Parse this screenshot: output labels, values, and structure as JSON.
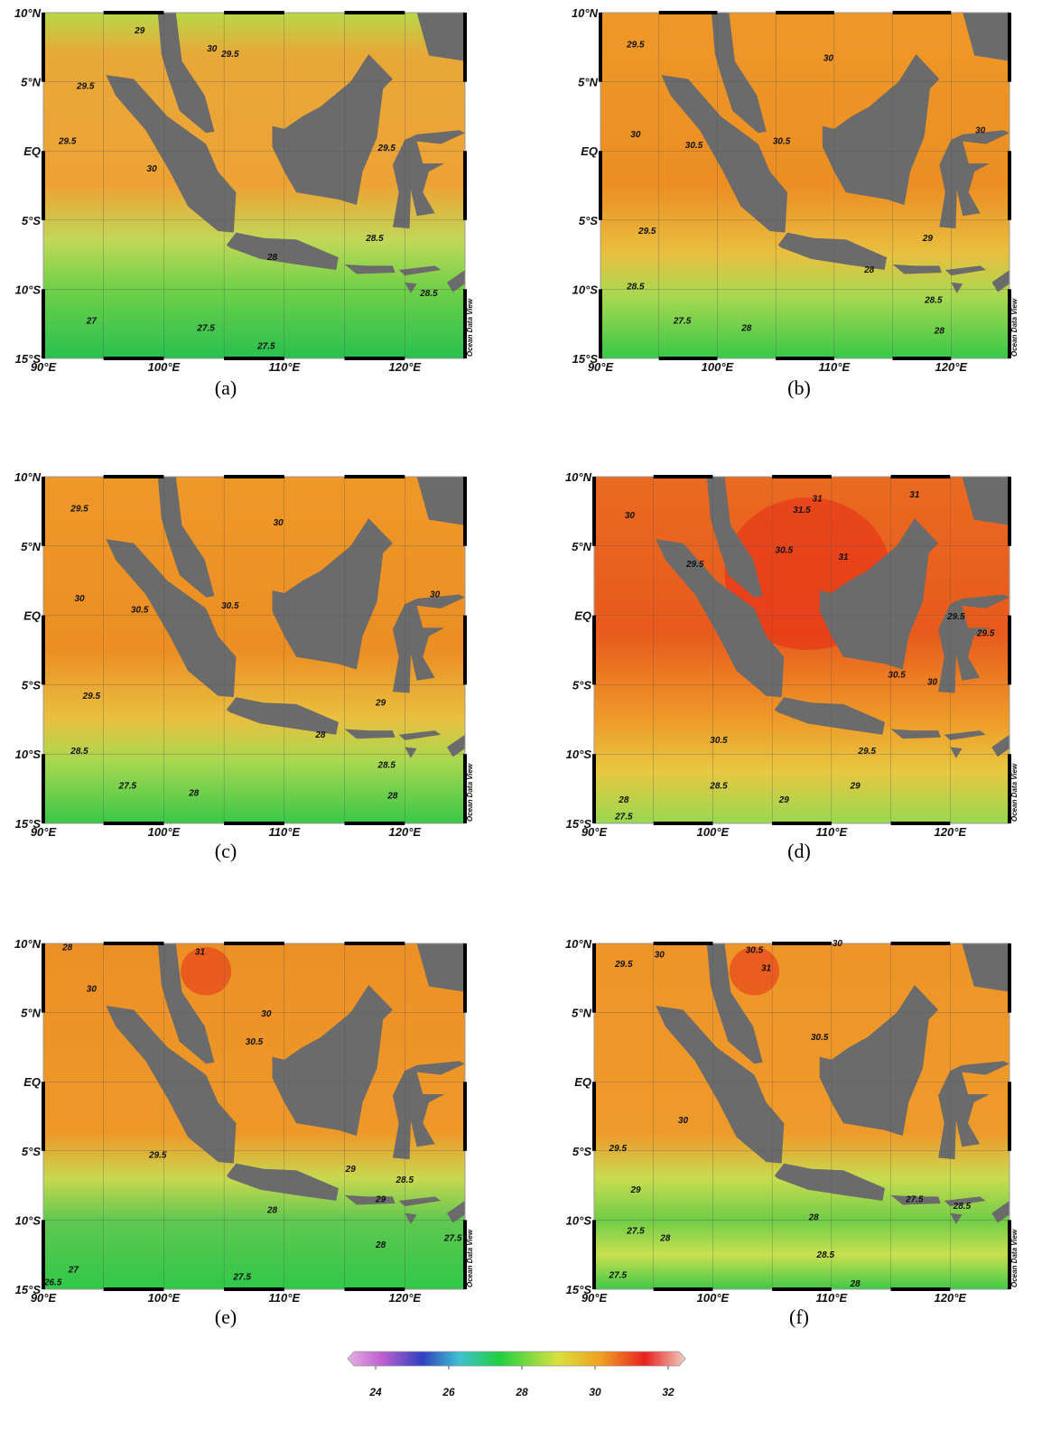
{
  "lat_labels": [
    "10°N",
    "5°N",
    "EQ",
    "5°S",
    "10°S",
    "15°S"
  ],
  "lon_labels": [
    "90°E",
    "100°E",
    "110°E",
    "120°E"
  ],
  "watermark": "Ocean Data View",
  "panels": [
    {
      "caption": "(a)",
      "contour_labels": [
        "29",
        "30",
        "29.5",
        "29.5",
        "29.5",
        "30",
        "29.5",
        "28.5",
        "28",
        "28.5",
        "27",
        "27.5",
        "27.5"
      ]
    },
    {
      "caption": "(b)",
      "contour_labels": [
        "29.5",
        "30",
        "30.5",
        "30",
        "30.5",
        "30",
        "29.5",
        "28.5",
        "27.5",
        "28",
        "28",
        "28.5",
        "28",
        "29"
      ]
    },
    {
      "caption": "(c)",
      "contour_labels": [
        "29.5",
        "30",
        "30.5",
        "30",
        "30.5",
        "30",
        "29.5",
        "28.5",
        "27.5",
        "28",
        "28",
        "28.5",
        "28",
        "29"
      ]
    },
    {
      "caption": "(d)",
      "contour_labels": [
        "30",
        "31.5",
        "31",
        "30.5",
        "31",
        "31",
        "29.5",
        "29.5",
        "29.5",
        "30.5",
        "30",
        "30.5",
        "29.5",
        "29",
        "28.5",
        "29",
        "28",
        "27.5"
      ]
    },
    {
      "caption": "(e)",
      "contour_labels": [
        "28",
        "31",
        "30",
        "30.5",
        "30",
        "29.5",
        "29",
        "28.5",
        "29",
        "28",
        "28",
        "27.5",
        "27",
        "26.5",
        "27.5"
      ]
    },
    {
      "caption": "(f)",
      "contour_labels": [
        "29.5",
        "30",
        "30.5",
        "31",
        "30",
        "30.5",
        "30",
        "29.5",
        "29",
        "27.5",
        "28.5",
        "28",
        "28.5",
        "27.5",
        "28",
        "27.5",
        "28"
      ]
    }
  ],
  "colorbar": {
    "ticks": [
      24,
      26,
      28,
      30,
      32
    ]
  }
}
